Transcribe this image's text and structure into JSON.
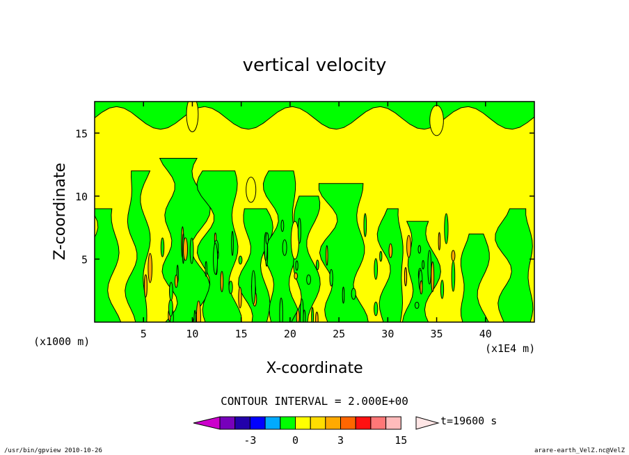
{
  "chart_data": {
    "type": "heatmap",
    "title": "vertical velocity",
    "xlabel": "X-coordinate",
    "ylabel": "Z-coordinate",
    "x_unit_left": "(x1000 m)",
    "x_unit_right": "(x1E4 m)",
    "xlim": [
      0,
      45
    ],
    "ylim": [
      0,
      17.5
    ],
    "xticks": [
      5,
      10,
      15,
      20,
      25,
      30,
      35,
      40
    ],
    "yticks": [
      5,
      10,
      15
    ],
    "contour_interval_text": "CONTOUR INTERVAL = 2.000E+00",
    "time_label": "t=19600 s",
    "colorbar": {
      "boundaries": [
        -9,
        -7,
        -5,
        -3,
        -2,
        -1,
        0,
        1,
        2,
        3,
        6,
        9,
        12,
        15,
        18
      ],
      "labels": [
        {
          "value": -3,
          "text": "-3"
        },
        {
          "value": 0,
          "text": "0"
        },
        {
          "value": 3,
          "text": "3"
        },
        {
          "value": 15,
          "text": "15"
        }
      ],
      "colors": [
        "#cc00cc",
        "#7700bb",
        "#2200aa",
        "#0000ff",
        "#00aaff",
        "#00ff00",
        "#ffff00",
        "#ffdd00",
        "#ffaa00",
        "#ff6600",
        "#ff1111",
        "#ff7777",
        "#ffbbbb",
        "#ffe6e6",
        "#ffdddd"
      ]
    },
    "field_colors": {
      "positive": "#ffff00",
      "negative": "#00ff00",
      "contour": "#000000",
      "strong": "#ffaa00"
    }
  },
  "footer": {
    "left": "/usr/bin/gpview   2010-10-26",
    "right": "arare-earth_VelZ.nc@VelZ"
  }
}
